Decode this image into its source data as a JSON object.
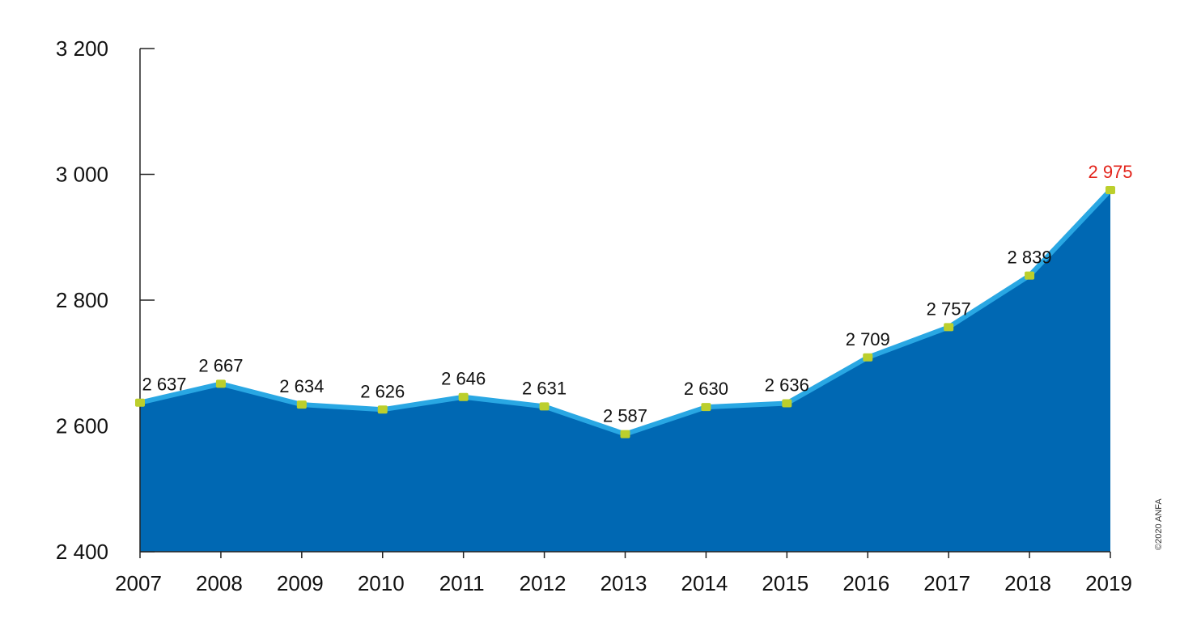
{
  "chart_data": {
    "type": "area",
    "x": [
      "2007",
      "2008",
      "2009",
      "2010",
      "2011",
      "2012",
      "2013",
      "2014",
      "2015",
      "2016",
      "2017",
      "2018",
      "2019"
    ],
    "values": [
      2637,
      2667,
      2634,
      2626,
      2646,
      2631,
      2587,
      2630,
      2636,
      2709,
      2757,
      2839,
      2975
    ],
    "data_labels": [
      "2 637",
      "2 667",
      "2 634",
      "2 626",
      "2 646",
      "2 631",
      "2 587",
      "2 630",
      "2 636",
      "2 709",
      "2 757",
      "2 839",
      "2 975"
    ],
    "y_ticks": [
      {
        "value": 2400,
        "label": "2 400"
      },
      {
        "value": 2600,
        "label": "2 600"
      },
      {
        "value": 2800,
        "label": "2 800"
      },
      {
        "value": 3000,
        "label": "3 000"
      },
      {
        "value": 3200,
        "label": "3 200"
      }
    ],
    "ylim": [
      2400,
      3200
    ],
    "highlight_index": 12,
    "grid": false,
    "colors": {
      "area": "#0068b3",
      "line": "#29a7e3",
      "marker": "#bccf2c",
      "highlight_label": "#e3241b",
      "axis": "#222222"
    }
  },
  "copyright": "©2020 ANFA"
}
